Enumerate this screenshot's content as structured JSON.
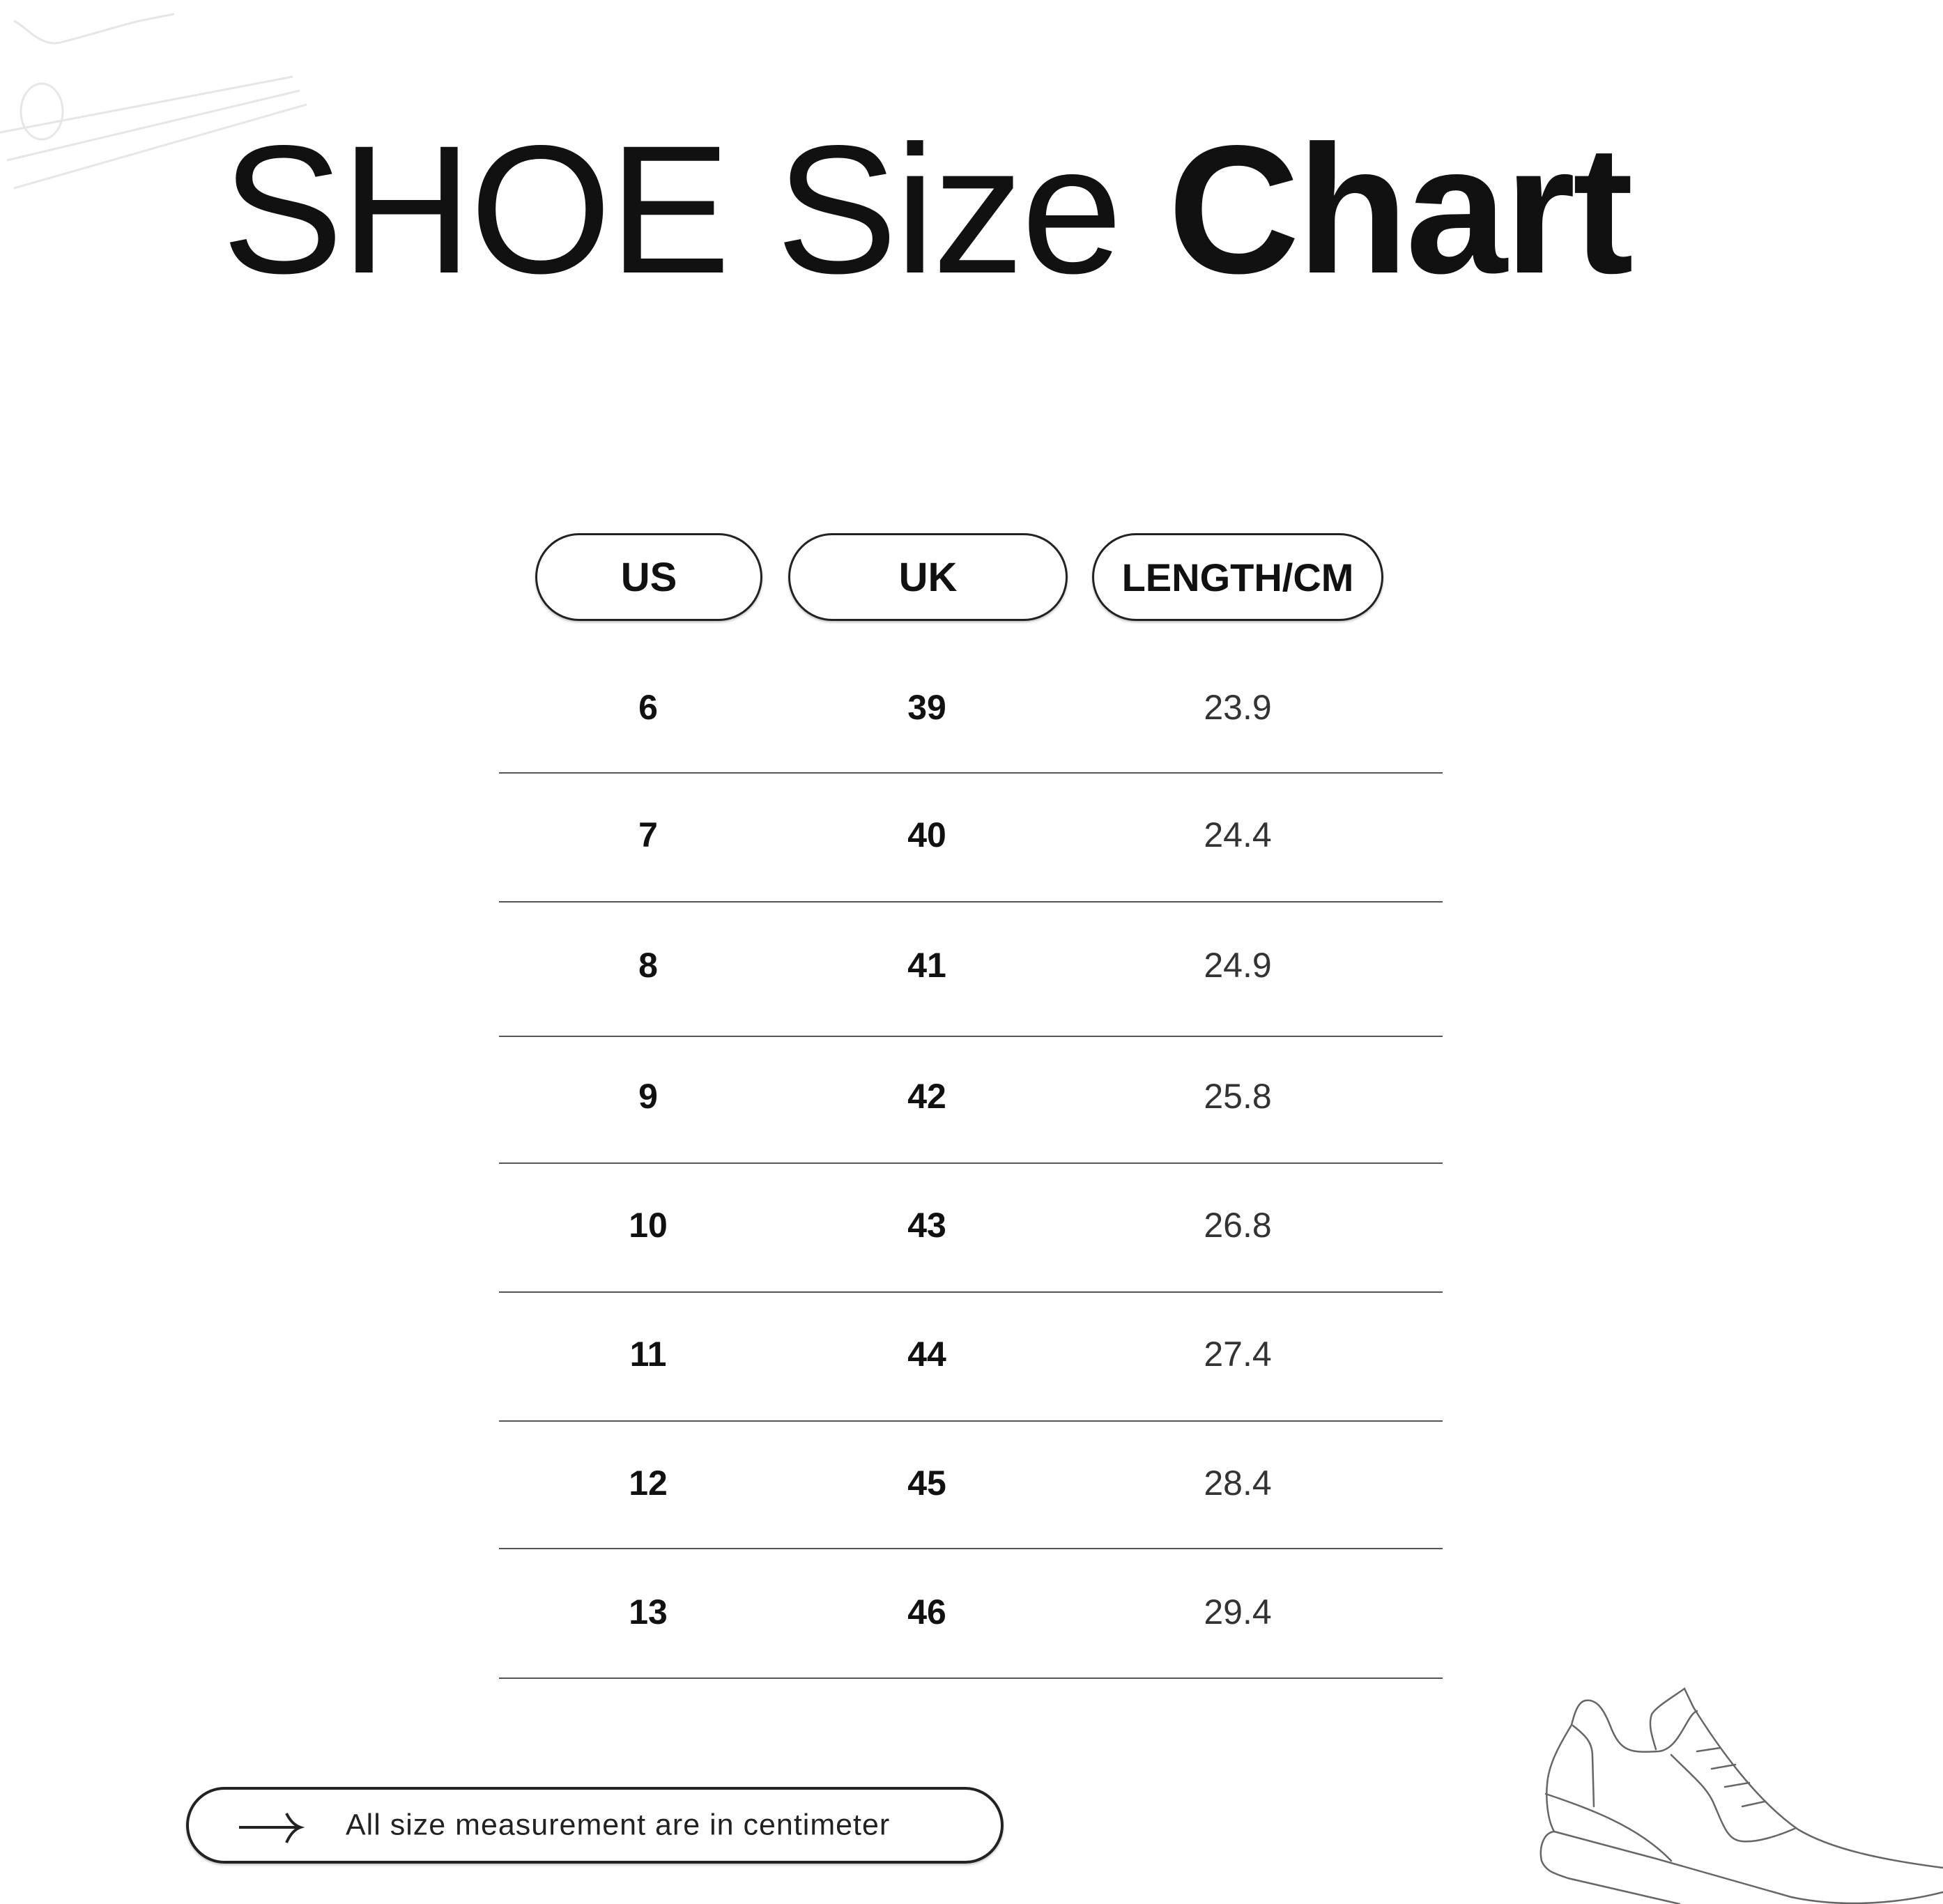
{
  "title": {
    "light": "SHOE Size",
    "bold": "Chart"
  },
  "table": {
    "headers": [
      "US",
      "UK",
      "LENGTH/CM"
    ],
    "rows": [
      [
        "6",
        "39",
        "23.9"
      ],
      [
        "7",
        "40",
        "24.4"
      ],
      [
        "8",
        "41",
        "24.9"
      ],
      [
        "9",
        "42",
        "25.8"
      ],
      [
        "10",
        "43",
        "26.8"
      ],
      [
        "11",
        "44",
        "27.4"
      ],
      [
        "12",
        "45",
        "28.4"
      ],
      [
        "13",
        "46",
        "29.4"
      ]
    ]
  },
  "footer": {
    "icon": "arrow-right-icon",
    "note": "All size measurement are in centimeter"
  },
  "decorations": [
    "sneaker-outline-icon",
    "faint-sneaker-outline-icon"
  ]
}
